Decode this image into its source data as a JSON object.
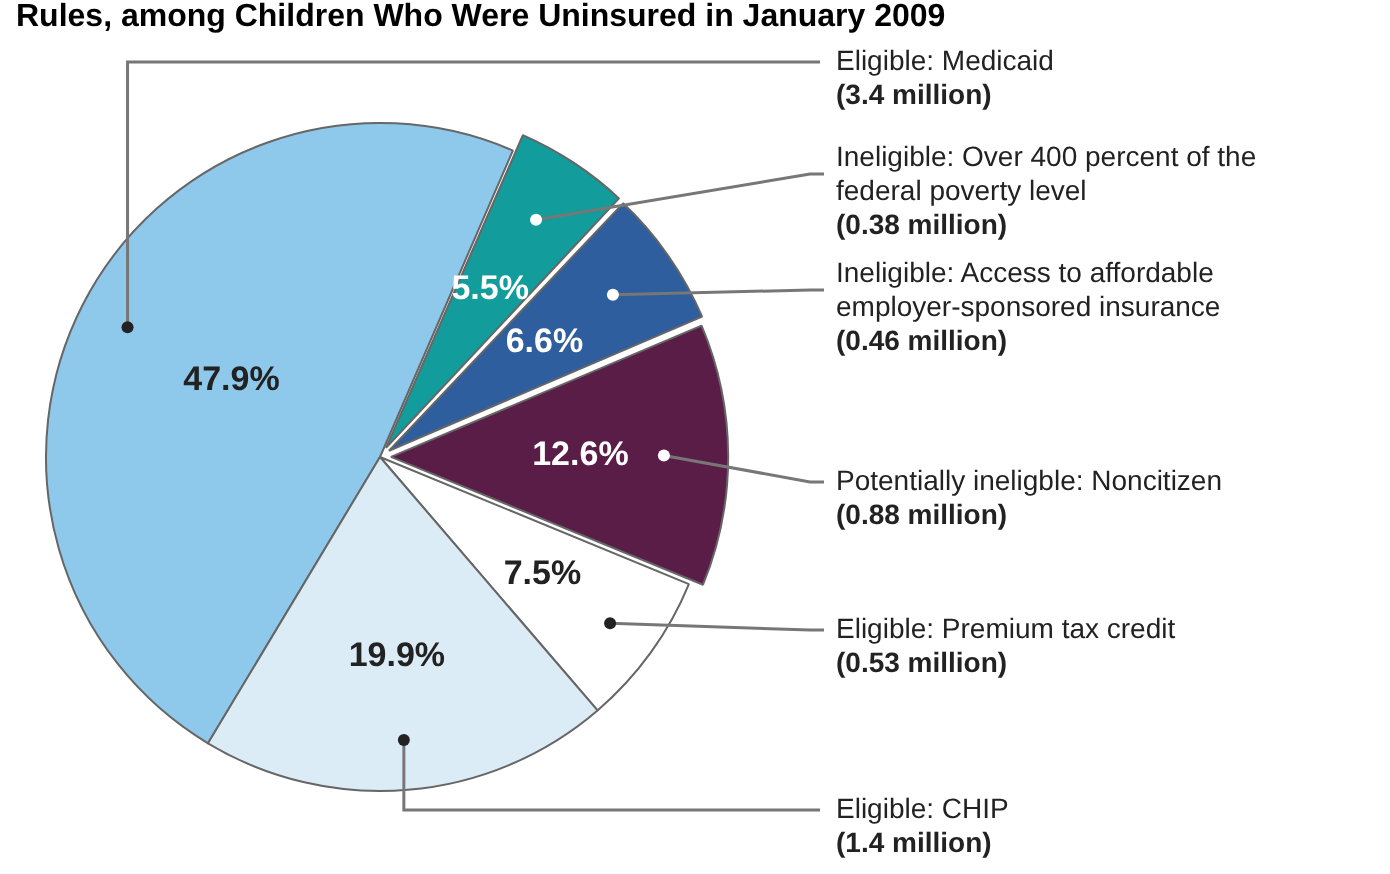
{
  "chart_data": {
    "type": "pie",
    "title": "Rules, among Children Who Were Uninsured in January 2009",
    "categories": [
      "Eligible: Medicaid",
      "Ineligible: Over 400 percent of the federal poverty level",
      "Ineligible: Access to affordable employer-sponsored insurance",
      "Potentially ineligble: Noncitizen",
      "Eligible: Premium tax credit",
      "Eligible: CHIP"
    ],
    "values": [
      47.9,
      5.5,
      6.6,
      12.6,
      7.5,
      19.9
    ],
    "colors": [
      "#8ec8ea",
      "#129c9c",
      "#2f5e9f",
      "#5a1d48",
      "#ffffff",
      "#dcecf6"
    ],
    "value_labels": [
      "47.9%",
      "5.5%",
      "6.6%",
      "12.6%",
      "7.5%",
      "19.9%"
    ],
    "annotations": [
      {
        "text": "(3.4 million)",
        "x": "Eligible: Medicaid"
      },
      {
        "text": "(0.38 million)",
        "x": "Ineligible: Over 400 percent of the federal poverty level"
      },
      {
        "text": "(0.46 million)",
        "x": "Ineligible: Access to affordable employer-sponsored insurance"
      },
      {
        "text": "(0.88 million)",
        "x": "Potentially ineligble: Noncitizen"
      },
      {
        "text": "(0.53 million)",
        "x": "Eligible: Premium tax credit"
      },
      {
        "text": "(1.4 million)",
        "x": "Eligible: CHIP"
      }
    ],
    "legend": false
  }
}
